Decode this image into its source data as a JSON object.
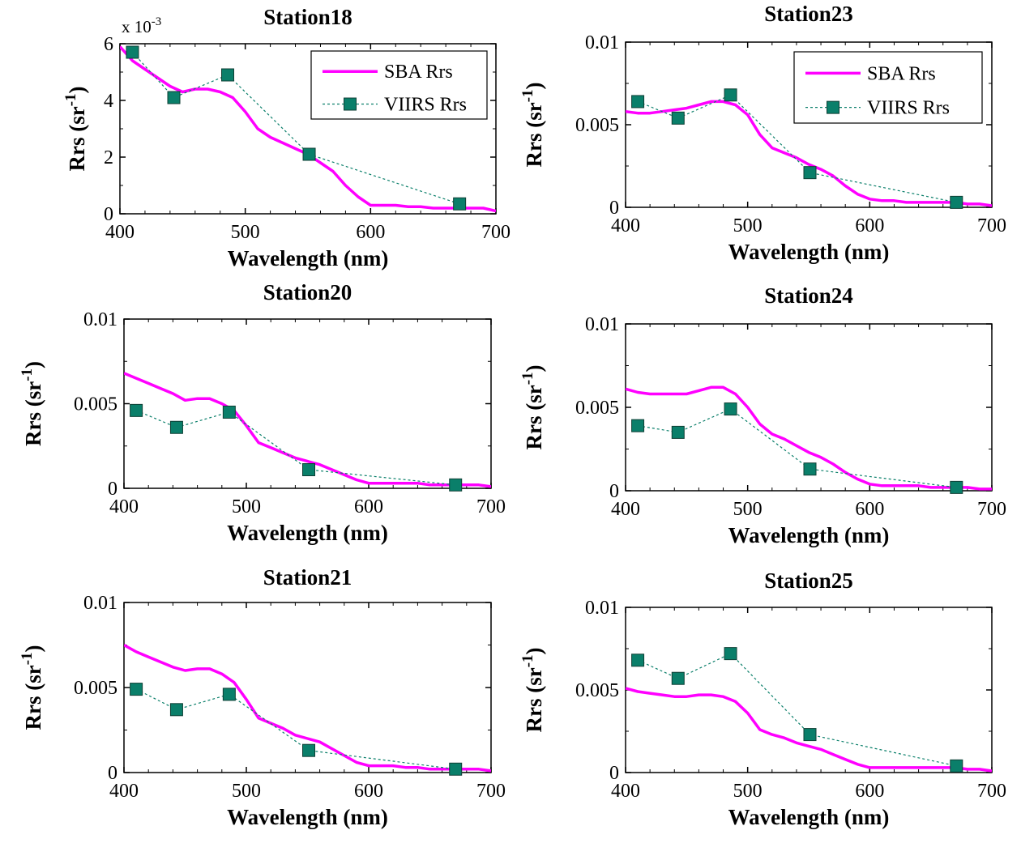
{
  "colors": {
    "sba": "#ff00ff",
    "viirs": "#0a7f6a",
    "axis": "#000000"
  },
  "chart_data": [
    {
      "type": "line",
      "title": "Station18",
      "xlabel": "Wavelength (nm)",
      "ylabel_base": "Rrs (sr",
      "ylabel_sup": "-1",
      "ylabel_close": ")",
      "xlim": [
        400,
        700
      ],
      "ylim": [
        0,
        0.006
      ],
      "xticks": [
        400,
        500,
        600,
        700
      ],
      "yticks": [
        0,
        0.002,
        0.004,
        0.006
      ],
      "ytick_labels": [
        "0",
        "2",
        "4",
        "6"
      ],
      "multiplier_base": "x 10",
      "multiplier_exp": "-3",
      "legend": {
        "position": "top-right",
        "entries": [
          "SBA Rrs",
          "VIIRS Rrs"
        ]
      },
      "series": [
        {
          "name": "SBA Rrs",
          "style": "line",
          "x": [
            400,
            410,
            420,
            430,
            440,
            450,
            460,
            470,
            480,
            490,
            500,
            510,
            520,
            530,
            540,
            550,
            560,
            570,
            580,
            590,
            600,
            610,
            620,
            630,
            640,
            650,
            660,
            670,
            680,
            690,
            700
          ],
          "y": [
            0.0059,
            0.0054,
            0.0051,
            0.0048,
            0.0045,
            0.0043,
            0.0044,
            0.0044,
            0.0043,
            0.0041,
            0.0036,
            0.003,
            0.0027,
            0.0025,
            0.0023,
            0.0021,
            0.0018,
            0.0015,
            0.001,
            0.0006,
            0.0003,
            0.0003,
            0.0003,
            0.00025,
            0.00025,
            0.0002,
            0.0002,
            0.0002,
            0.0002,
            0.0002,
            0.0001
          ]
        },
        {
          "name": "VIIRS Rrs",
          "style": "markers-dashed",
          "x": [
            410,
            443,
            486,
            551,
            671
          ],
          "y": [
            0.0057,
            0.0041,
            0.0049,
            0.0021,
            0.00035
          ]
        }
      ]
    },
    {
      "type": "line",
      "title": "Station23",
      "xlabel": "Wavelength (nm)",
      "ylabel_base": "Rrs (sr",
      "ylabel_sup": "-1",
      "ylabel_close": ")",
      "xlim": [
        400,
        700
      ],
      "ylim": [
        0,
        0.01
      ],
      "xticks": [
        400,
        500,
        600,
        700
      ],
      "yticks": [
        0,
        0.005,
        0.01
      ],
      "ytick_labels": [
        "0",
        "0.005",
        "0.01"
      ],
      "legend": {
        "position": "top-right",
        "entries": [
          "SBA Rrs",
          "VIIRS Rrs"
        ]
      },
      "series": [
        {
          "name": "SBA Rrs",
          "style": "line",
          "x": [
            400,
            410,
            420,
            430,
            440,
            450,
            460,
            470,
            480,
            490,
            500,
            510,
            520,
            530,
            540,
            550,
            560,
            570,
            580,
            590,
            600,
            610,
            620,
            630,
            640,
            650,
            660,
            670,
            680,
            690,
            700
          ],
          "y": [
            0.0058,
            0.0057,
            0.0057,
            0.0058,
            0.0059,
            0.006,
            0.0062,
            0.0064,
            0.0064,
            0.0062,
            0.0056,
            0.0044,
            0.0036,
            0.0033,
            0.003,
            0.0026,
            0.0023,
            0.0019,
            0.0013,
            0.0008,
            0.0005,
            0.0004,
            0.0004,
            0.0003,
            0.0003,
            0.0003,
            0.0003,
            0.0003,
            0.0002,
            0.0002,
            0.0001
          ]
        },
        {
          "name": "VIIRS Rrs",
          "style": "markers-dashed",
          "x": [
            410,
            443,
            486,
            551,
            671
          ],
          "y": [
            0.0064,
            0.0054,
            0.0068,
            0.0021,
            0.0003
          ]
        }
      ]
    },
    {
      "type": "line",
      "title": "Station20",
      "xlabel": "Wavelength (nm)",
      "ylabel_base": "Rrs (sr",
      "ylabel_sup": "-1",
      "ylabel_close": ")",
      "xlim": [
        400,
        700
      ],
      "ylim": [
        0,
        0.01
      ],
      "xticks": [
        400,
        500,
        600,
        700
      ],
      "yticks": [
        0,
        0.005,
        0.01
      ],
      "ytick_labels": [
        "0",
        "0.005",
        "0.01"
      ],
      "series": [
        {
          "name": "SBA Rrs",
          "style": "line",
          "x": [
            400,
            410,
            420,
            430,
            440,
            450,
            460,
            470,
            480,
            490,
            500,
            510,
            520,
            530,
            540,
            550,
            560,
            570,
            580,
            590,
            600,
            610,
            620,
            630,
            640,
            650,
            660,
            670,
            680,
            690,
            700
          ],
          "y": [
            0.0068,
            0.0065,
            0.0062,
            0.0059,
            0.0056,
            0.0052,
            0.0053,
            0.0053,
            0.005,
            0.0046,
            0.0037,
            0.0027,
            0.0024,
            0.0021,
            0.0018,
            0.0016,
            0.0014,
            0.0011,
            0.0008,
            0.0005,
            0.0003,
            0.0003,
            0.0003,
            0.0003,
            0.0003,
            0.0002,
            0.0002,
            0.0002,
            0.0002,
            0.0002,
            0.0001
          ]
        },
        {
          "name": "VIIRS Rrs",
          "style": "markers-dashed",
          "x": [
            410,
            443,
            486,
            551,
            671
          ],
          "y": [
            0.0046,
            0.0036,
            0.0045,
            0.0011,
            0.0002
          ]
        }
      ]
    },
    {
      "type": "line",
      "title": "Station24",
      "xlabel": "Wavelength (nm)",
      "ylabel_base": "Rrs (sr",
      "ylabel_sup": "-1",
      "ylabel_close": ")",
      "xlim": [
        400,
        700
      ],
      "ylim": [
        0,
        0.01
      ],
      "xticks": [
        400,
        500,
        600,
        700
      ],
      "yticks": [
        0,
        0.005,
        0.01
      ],
      "ytick_labels": [
        "0",
        "0.005",
        "0.01"
      ],
      "series": [
        {
          "name": "SBA Rrs",
          "style": "line",
          "x": [
            400,
            410,
            420,
            430,
            440,
            450,
            460,
            470,
            480,
            490,
            500,
            510,
            520,
            530,
            540,
            550,
            560,
            570,
            580,
            590,
            600,
            610,
            620,
            630,
            640,
            650,
            660,
            670,
            680,
            690,
            700
          ],
          "y": [
            0.0061,
            0.0059,
            0.0058,
            0.0058,
            0.0058,
            0.0058,
            0.006,
            0.0062,
            0.0062,
            0.0058,
            0.005,
            0.004,
            0.0034,
            0.0031,
            0.0027,
            0.0023,
            0.002,
            0.0016,
            0.0011,
            0.0007,
            0.0004,
            0.0003,
            0.0003,
            0.0003,
            0.0003,
            0.0002,
            0.0002,
            0.0002,
            0.0002,
            0.0001,
            0.0001
          ]
        },
        {
          "name": "VIIRS Rrs",
          "style": "markers-dashed",
          "x": [
            410,
            443,
            486,
            551,
            671
          ],
          "y": [
            0.0039,
            0.0035,
            0.0049,
            0.0013,
            0.0002
          ]
        }
      ]
    },
    {
      "type": "line",
      "title": "Station21",
      "xlabel": "Wavelength (nm)",
      "ylabel_base": "Rrs (sr",
      "ylabel_sup": "-1",
      "ylabel_close": ")",
      "xlim": [
        400,
        700
      ],
      "ylim": [
        0,
        0.01
      ],
      "xticks": [
        400,
        500,
        600,
        700
      ],
      "yticks": [
        0,
        0.005,
        0.01
      ],
      "ytick_labels": [
        "0",
        "0.005",
        "0.01"
      ],
      "series": [
        {
          "name": "SBA Rrs",
          "style": "line",
          "x": [
            400,
            410,
            420,
            430,
            440,
            450,
            460,
            470,
            480,
            490,
            500,
            510,
            520,
            530,
            540,
            550,
            560,
            570,
            580,
            590,
            600,
            610,
            620,
            630,
            640,
            650,
            660,
            670,
            680,
            690,
            700
          ],
          "y": [
            0.0075,
            0.0071,
            0.0068,
            0.0065,
            0.0062,
            0.006,
            0.0061,
            0.0061,
            0.0058,
            0.0053,
            0.0043,
            0.0032,
            0.0029,
            0.0026,
            0.0022,
            0.002,
            0.0018,
            0.0014,
            0.001,
            0.0006,
            0.0004,
            0.0004,
            0.0004,
            0.0003,
            0.0003,
            0.0002,
            0.0002,
            0.0002,
            0.0002,
            0.0002,
            0.0001
          ]
        },
        {
          "name": "VIIRS Rrs",
          "style": "markers-dashed",
          "x": [
            410,
            443,
            486,
            551,
            671
          ],
          "y": [
            0.0049,
            0.0037,
            0.0046,
            0.0013,
            0.0002
          ]
        }
      ]
    },
    {
      "type": "line",
      "title": "Station25",
      "xlabel": "Wavelength (nm)",
      "ylabel_base": "Rrs (sr",
      "ylabel_sup": "-1",
      "ylabel_close": ")",
      "xlim": [
        400,
        700
      ],
      "ylim": [
        0,
        0.01
      ],
      "xticks": [
        400,
        500,
        600,
        700
      ],
      "yticks": [
        0,
        0.005,
        0.01
      ],
      "ytick_labels": [
        "0",
        "0.005",
        "0.01"
      ],
      "series": [
        {
          "name": "SBA Rrs",
          "style": "line",
          "x": [
            400,
            410,
            420,
            430,
            440,
            450,
            460,
            470,
            480,
            490,
            500,
            510,
            520,
            530,
            540,
            550,
            560,
            570,
            580,
            590,
            600,
            610,
            620,
            630,
            640,
            650,
            660,
            670,
            680,
            690,
            700
          ],
          "y": [
            0.0051,
            0.0049,
            0.0048,
            0.0047,
            0.0046,
            0.0046,
            0.0047,
            0.0047,
            0.0046,
            0.0043,
            0.0036,
            0.0026,
            0.0023,
            0.0021,
            0.0018,
            0.0016,
            0.0014,
            0.0011,
            0.0008,
            0.0005,
            0.0003,
            0.0003,
            0.0003,
            0.0003,
            0.0003,
            0.0003,
            0.0003,
            0.0003,
            0.0002,
            0.0002,
            0.0001
          ]
        },
        {
          "name": "VIIRS Rrs",
          "style": "markers-dashed",
          "x": [
            410,
            443,
            486,
            551,
            671
          ],
          "y": [
            0.0068,
            0.0057,
            0.0072,
            0.0023,
            0.0004
          ]
        }
      ]
    }
  ]
}
